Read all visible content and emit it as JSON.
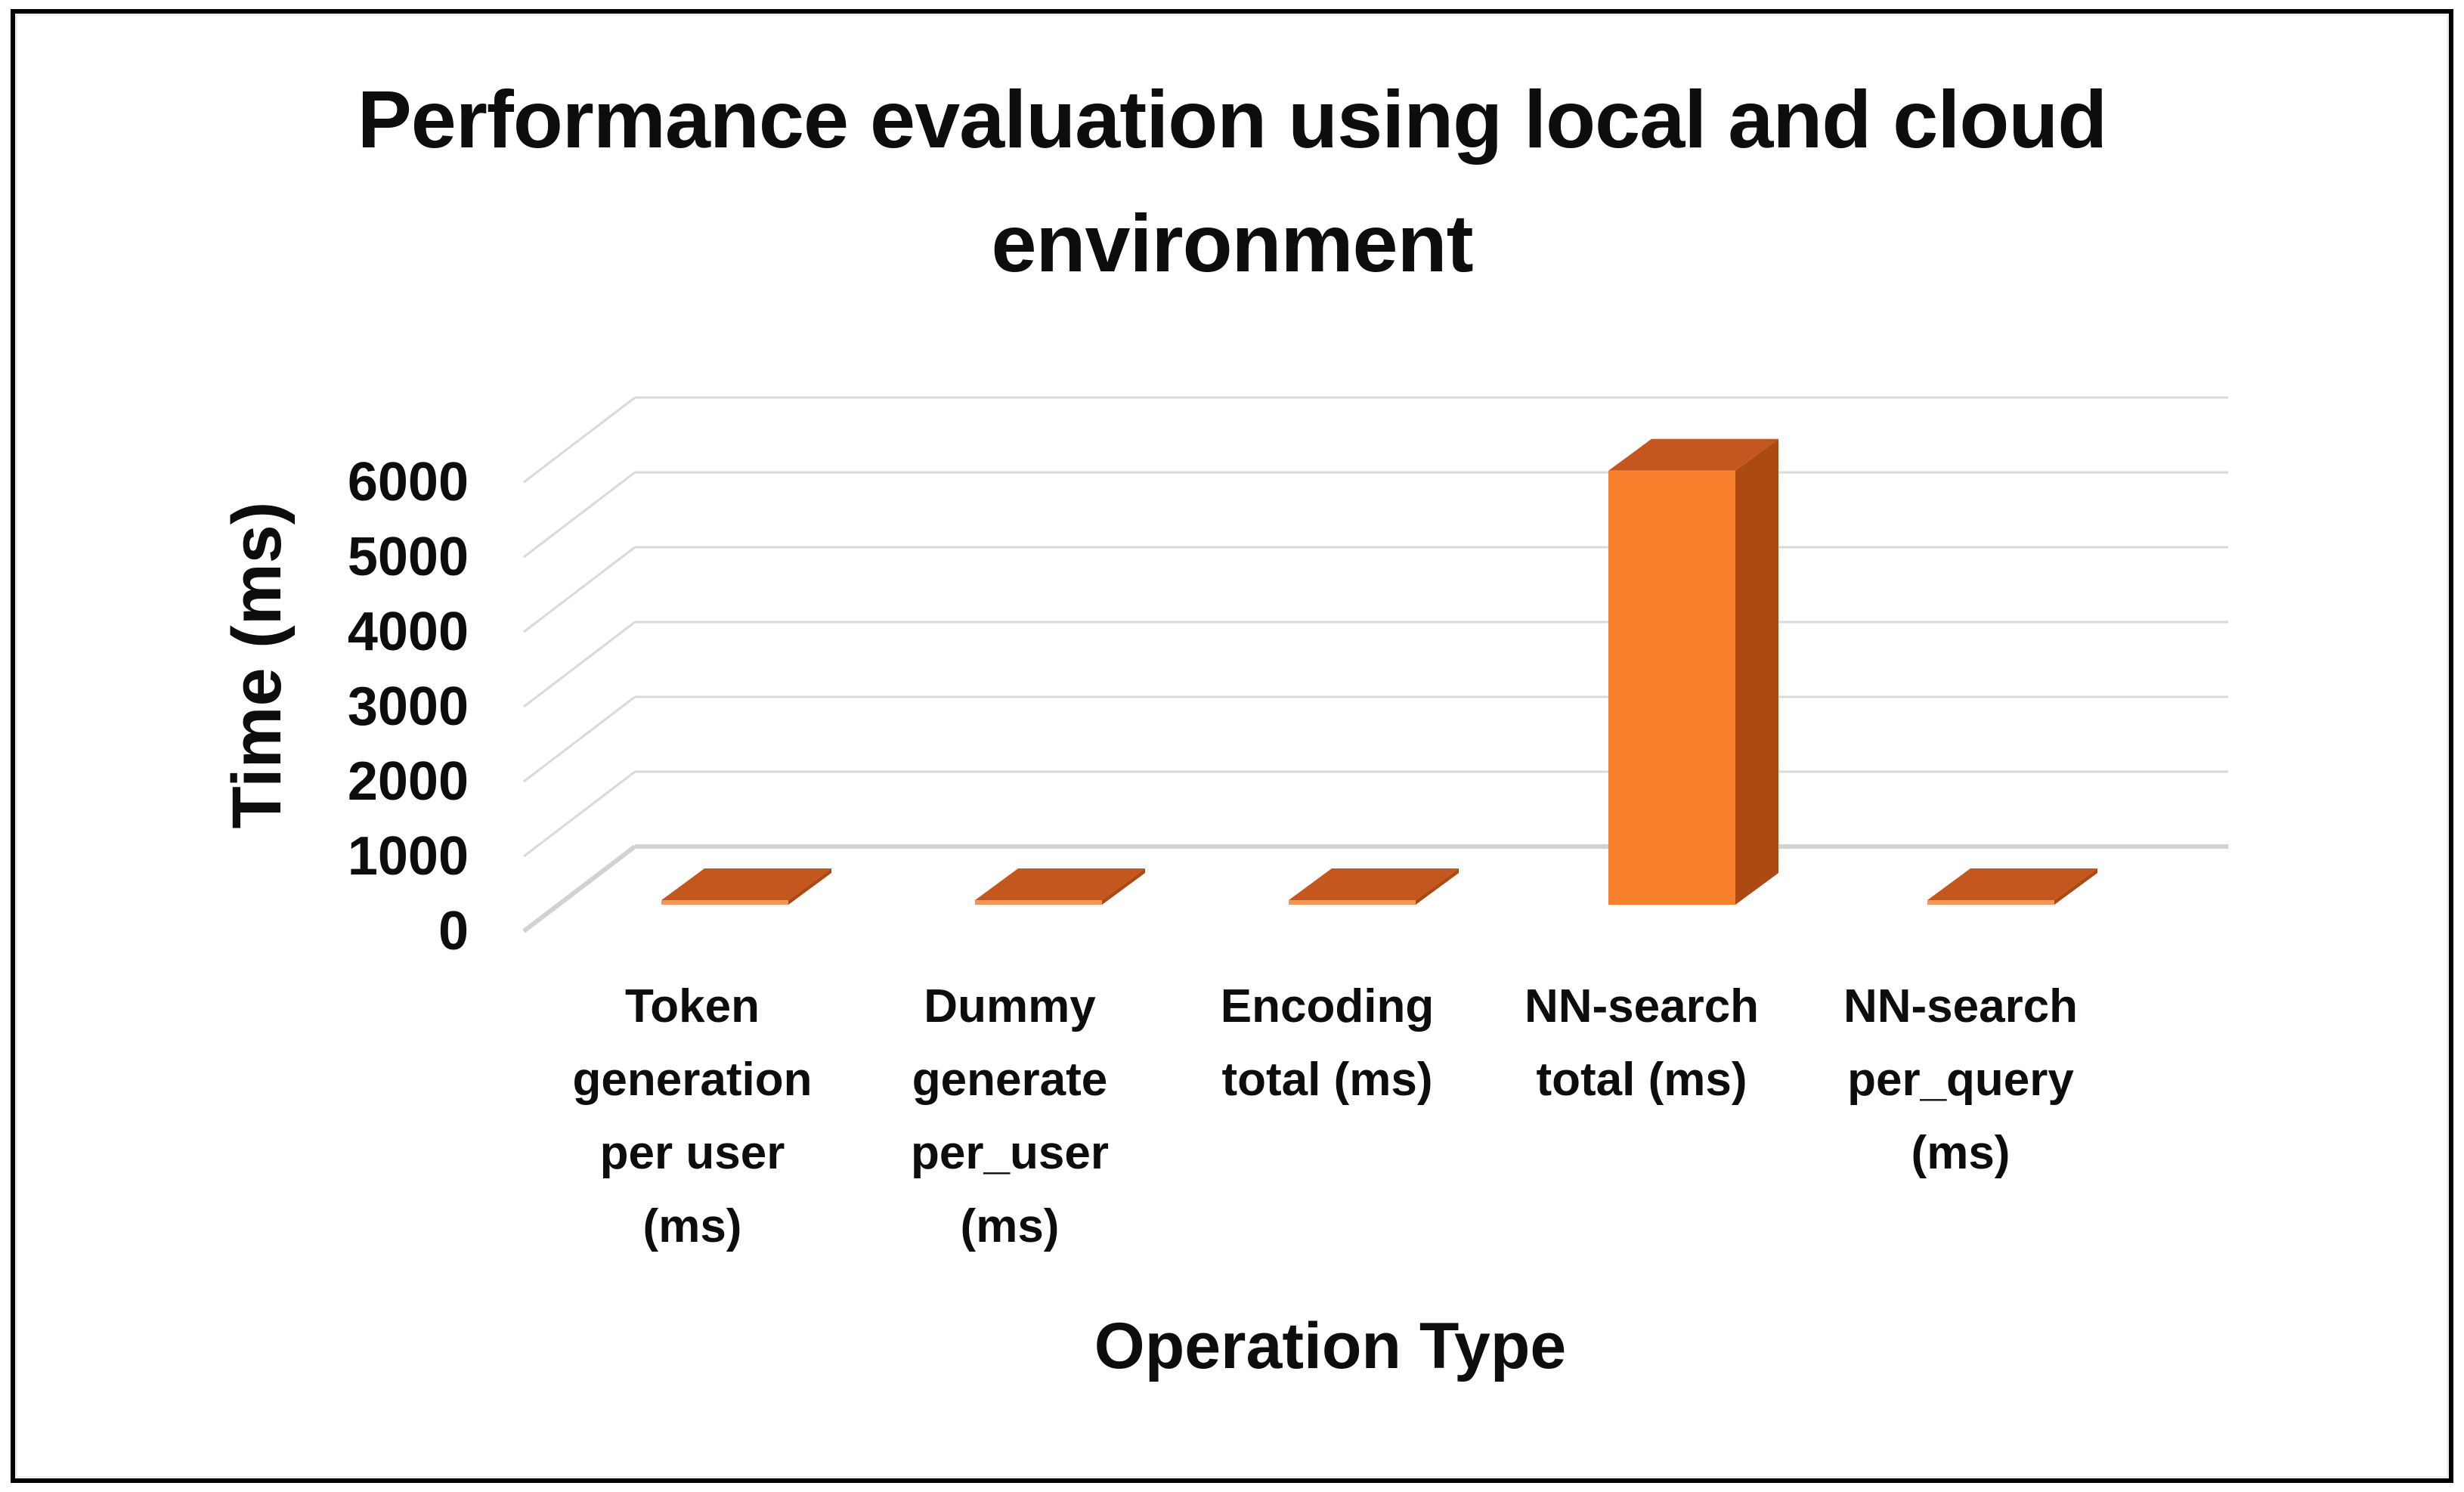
{
  "title": "Performance evaluation using local and cloud environment",
  "y_axis": {
    "title": "Time (ms)",
    "tick_labels": [
      "0",
      "1000",
      "2000",
      "3000",
      "4000",
      "5000",
      "6000"
    ]
  },
  "x_axis": {
    "title": "Operation Type",
    "categories": [
      "Token generation per user (ms)",
      "Dummy generate per_user (ms)",
      "Encoding total (ms)",
      "NN-search total (ms)",
      "NN-search per_query (ms)"
    ]
  },
  "chart_data": {
    "type": "bar",
    "variant": "3d-column",
    "title": "Performance evaluation using local and cloud environment",
    "xlabel": "Operation Type",
    "ylabel": "Time (ms)",
    "categories": [
      "Token generation per user (ms)",
      "Dummy generate per_user (ms)",
      "Encoding total (ms)",
      "NN-search total (ms)",
      "NN-search per_query (ms)"
    ],
    "values": [
      60,
      60,
      60,
      5800,
      60
    ],
    "ylim": [
      0,
      6000
    ],
    "ytick_step": 1000,
    "grid": true,
    "legend": false,
    "colors": {
      "bar_front": "#F8802C",
      "bar_front_thin": "#F2975C",
      "bar_side": "#AC4A14",
      "bar_top": "#C4571D",
      "gridline": "#DADADA",
      "gridline_zero": "#D2D2D2",
      "text": "#0d0d0d",
      "frame_border": "#000000",
      "background": "#FFFFFF"
    }
  }
}
